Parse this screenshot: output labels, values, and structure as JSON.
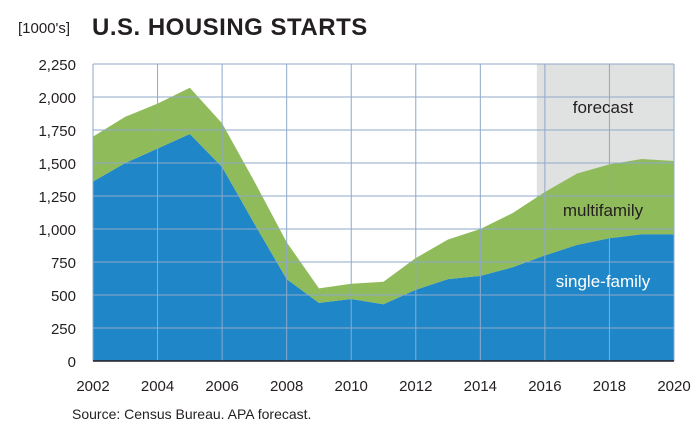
{
  "header": {
    "unit": "[1000's]",
    "title": "U.S. HOUSING STARTS"
  },
  "footer": {
    "source": "Source: Census Bureau. APA forecast."
  },
  "chart_data": {
    "type": "area",
    "title": "U.S. HOUSING STARTS",
    "ylabel": "[1000's]",
    "xlabel": "",
    "stacked": true,
    "ylim": [
      0,
      2250
    ],
    "xlim": [
      2002,
      2020
    ],
    "y_ticks": [
      0,
      250,
      500,
      750,
      1000,
      1250,
      1500,
      1750,
      2000,
      2250
    ],
    "y_tick_labels": [
      "0",
      "250",
      "500",
      "750",
      "1,000",
      "1,250",
      "1,500",
      "1,750",
      "2,000",
      "2,250"
    ],
    "x_ticks": [
      2002,
      2004,
      2006,
      2008,
      2010,
      2012,
      2014,
      2016,
      2018,
      2020
    ],
    "x_tick_labels": [
      "2002",
      "2004",
      "2006",
      "2008",
      "2010",
      "2012",
      "2014",
      "2016",
      "2018",
      "2020"
    ],
    "grid": true,
    "x": [
      2002,
      2003,
      2004,
      2005,
      2006,
      2007,
      2008,
      2009,
      2010,
      2011,
      2012,
      2013,
      2014,
      2015,
      2016,
      2017,
      2018,
      2019,
      2020
    ],
    "series": [
      {
        "name": "single-family",
        "color": "#1f86c8",
        "values": [
          1360,
          1500,
          1610,
          1720,
          1470,
          1040,
          620,
          440,
          470,
          430,
          540,
          620,
          645,
          710,
          800,
          880,
          930,
          960,
          960
        ]
      },
      {
        "name": "multifamily",
        "color": "#8fbb5a",
        "values": [
          340,
          350,
          340,
          350,
          330,
          320,
          280,
          110,
          115,
          170,
          240,
          300,
          355,
          410,
          480,
          540,
          560,
          570,
          555
        ]
      }
    ],
    "forecast": {
      "label": "forecast",
      "start": 2015.75,
      "end": 2020,
      "color": "#e0e1e1"
    },
    "annotations": [
      {
        "text": "forecast",
        "x": 2017.8,
        "y": 1880
      },
      {
        "text": "multifamily",
        "x": 2017.8,
        "y": 1100
      },
      {
        "text": "single-family",
        "x": 2017.8,
        "y": 560
      }
    ]
  }
}
